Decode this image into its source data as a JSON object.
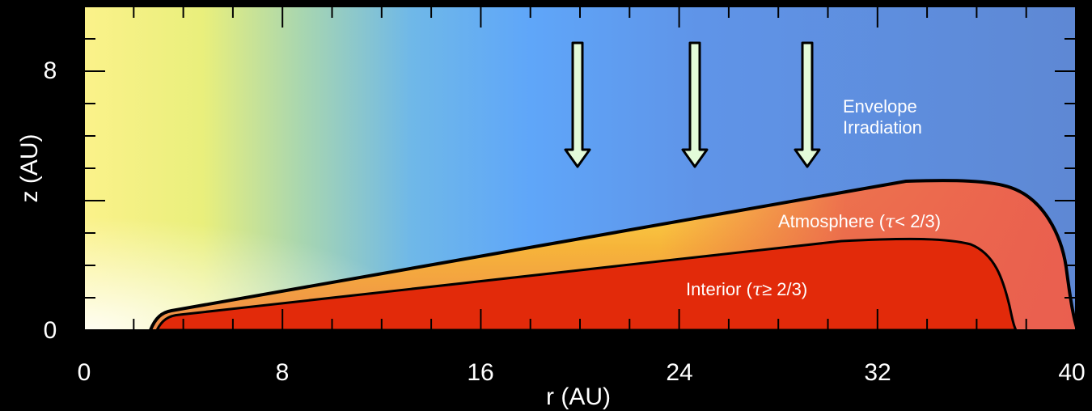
{
  "figure": {
    "x_axis": {
      "title": "r (AU)",
      "tick_labels": [
        "0",
        "8",
        "16",
        "24",
        "32",
        "40"
      ]
    },
    "y_axis": {
      "title": "z (AU)",
      "tick_labels": [
        "0",
        "8"
      ]
    },
    "labels": {
      "envelope_line1": "Envelope",
      "envelope_line2": "Irradiation",
      "atmosphere_prefix": "Atmosphere (",
      "atmosphere_tau": "τ",
      "atmosphere_suffix": "< 2/3)",
      "interior_prefix": "Interior (",
      "interior_tau": "τ",
      "interior_suffix": "≥ 2/3)"
    },
    "colors": {
      "background": "#000000",
      "envelope_yellow": "#fbf28a",
      "envelope_blue": "#5fa6f9",
      "envelope_dark_blue": "#5e8ad6",
      "atmosphere_yellow": "#ffd21a",
      "atmosphere_orange": "#f19a4c",
      "atmosphere_salmon": "#ea5f4f",
      "interior_red": "#e22a0a",
      "arrow_fill": "#e3fbd9",
      "outline": "#000000"
    }
  }
}
